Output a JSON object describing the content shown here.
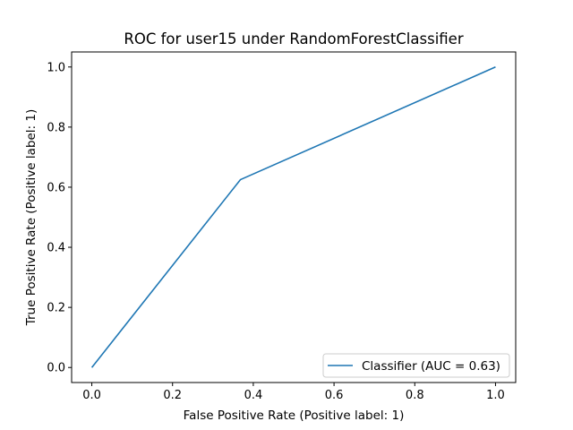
{
  "chart_data": {
    "type": "line",
    "title": "ROC for user15 under RandomForestClassifier",
    "xlabel": "False Positive Rate (Positive label: 1)",
    "ylabel": "True Positive Rate (Positive label: 1)",
    "xlim": [
      -0.05,
      1.05
    ],
    "ylim": [
      -0.05,
      1.05
    ],
    "xticks": [
      0.0,
      0.2,
      0.4,
      0.6,
      0.8,
      1.0
    ],
    "yticks": [
      0.0,
      0.2,
      0.4,
      0.6,
      0.8,
      1.0
    ],
    "xtick_labels": [
      "0.0",
      "0.2",
      "0.4",
      "0.6",
      "0.8",
      "1.0"
    ],
    "ytick_labels": [
      "0.0",
      "0.2",
      "0.4",
      "0.6",
      "0.8",
      "1.0"
    ],
    "grid": false,
    "legend_position": "lower-right",
    "series": [
      {
        "name": "Classifier (AUC = 0.63)",
        "color": "#1f77b4",
        "x": [
          0.0,
          0.368,
          1.0
        ],
        "y": [
          0.0,
          0.625,
          1.0
        ]
      }
    ]
  }
}
